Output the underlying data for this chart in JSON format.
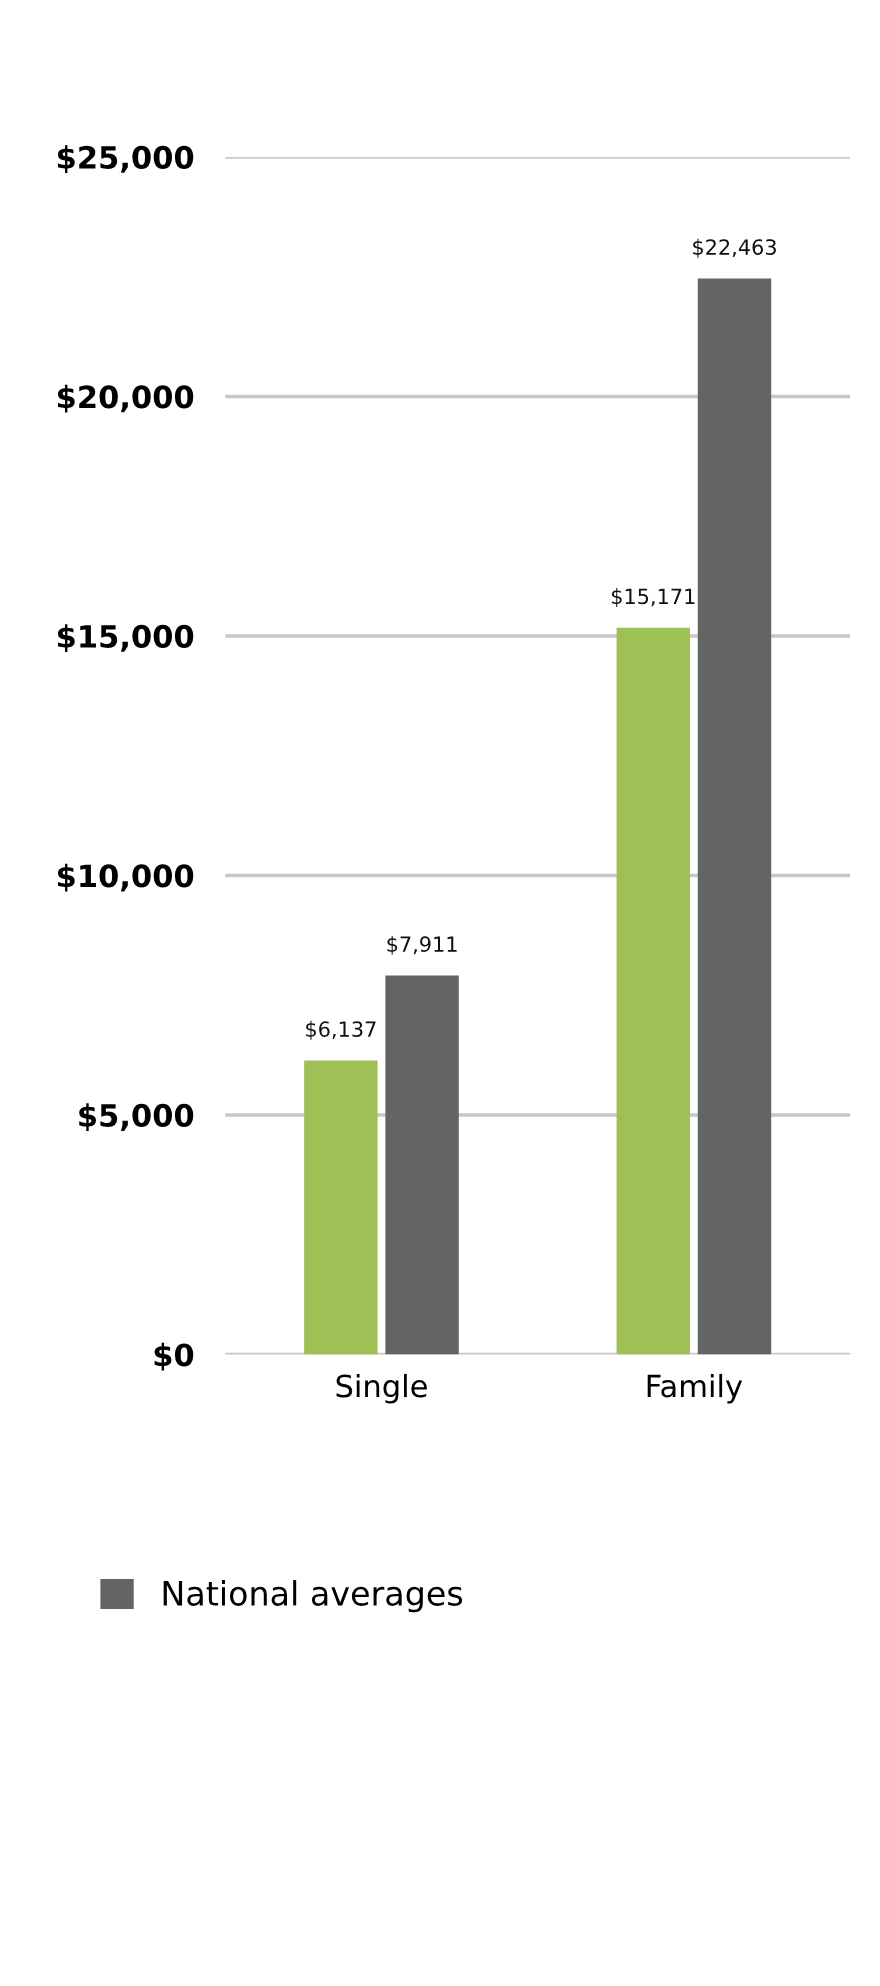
{
  "chart_data": {
    "type": "bar",
    "categories": [
      "Single",
      "Family"
    ],
    "series": [
      {
        "color": "#9dc155",
        "values": [
          6137,
          15171
        ],
        "value_labels": [
          "$6,137",
          "$15,171"
        ]
      },
      {
        "name": "National averages",
        "color": "#636466",
        "values": [
          7911,
          22463
        ],
        "value_labels": [
          "$7,911",
          "$22,463"
        ]
      }
    ],
    "ylim": [
      0,
      25000
    ],
    "yticks": [
      {
        "value": 0,
        "label": "$0"
      },
      {
        "value": 5000,
        "label": "$5,000"
      },
      {
        "value": 10000,
        "label": "$10,000"
      },
      {
        "value": 15000,
        "label": "$15,000"
      },
      {
        "value": 20000,
        "label": "$20,000"
      },
      {
        "value": 25000,
        "label": "$25,000"
      }
    ],
    "grid": "y",
    "legend": "bottom"
  }
}
